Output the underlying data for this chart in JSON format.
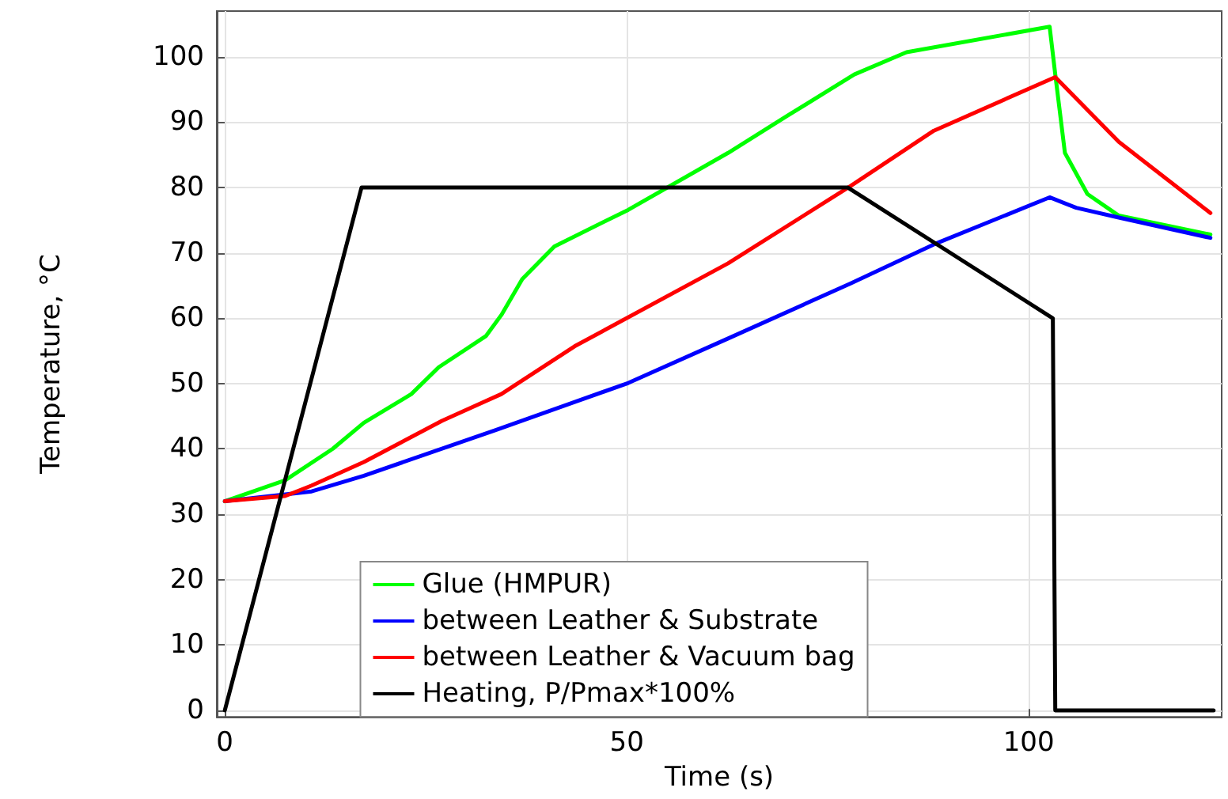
{
  "chart_data": {
    "type": "line",
    "xlabel": "Time (s)",
    "ylabel": "Temperature, °C",
    "xlim": [
      -1,
      124
    ],
    "ylim": [
      -1,
      107
    ],
    "xticks": [
      0,
      50,
      100
    ],
    "yticks": [
      0,
      10,
      20,
      30,
      40,
      50,
      60,
      70,
      80,
      90,
      100
    ],
    "grid": true,
    "legend": "bottom",
    "marker": "none",
    "line_style": "solid",
    "series": [
      {
        "name": "Glue (HMPUR)",
        "color": "#00ff00",
        "x": [
          0,
          7.5,
          13.4,
          17.3,
          23.2,
          26.6,
          32.5,
          34.4,
          37,
          41,
          50.2,
          62.6,
          70,
          78.3,
          84.8,
          102.6,
          103.3,
          104.5,
          107.3,
          111.2,
          122.6
        ],
        "values": [
          32,
          35.2,
          40,
          44,
          48.4,
          52.5,
          57.3,
          60.5,
          66,
          71,
          76.6,
          85.3,
          91,
          97.3,
          100.7,
          104.6,
          97.3,
          85.3,
          79,
          75.7,
          72.8
        ]
      },
      {
        "name": "between Leather & Substrate",
        "color": "#0000ff",
        "x": [
          0,
          10.8,
          17.3,
          33.7,
          50.2,
          62.6,
          77.8,
          88.2,
          102.6,
          105.9,
          111.2,
          122.6
        ],
        "values": [
          32,
          33.5,
          35.9,
          42.9,
          50.1,
          56.9,
          65.3,
          71.3,
          78.5,
          76.9,
          75.4,
          72.3
        ]
      },
      {
        "name": "between Leather & Vacuum bag",
        "color": "#ff0000",
        "x": [
          0,
          7.5,
          10.8,
          17.3,
          27,
          34.4,
          43.5,
          62.6,
          77.8,
          88.2,
          103.3,
          111.2,
          122.6
        ],
        "values": [
          32,
          32.8,
          34.4,
          38,
          44.3,
          48.4,
          55.7,
          68.4,
          80.2,
          88.7,
          96.9,
          87,
          76.1
        ]
      },
      {
        "name": "Heating, P/Pmax*100%",
        "color": "#000000",
        "x": [
          0,
          17,
          77.5,
          103,
          103.3,
          123
        ],
        "values": [
          0,
          80,
          80,
          60,
          0,
          0
        ]
      }
    ]
  }
}
